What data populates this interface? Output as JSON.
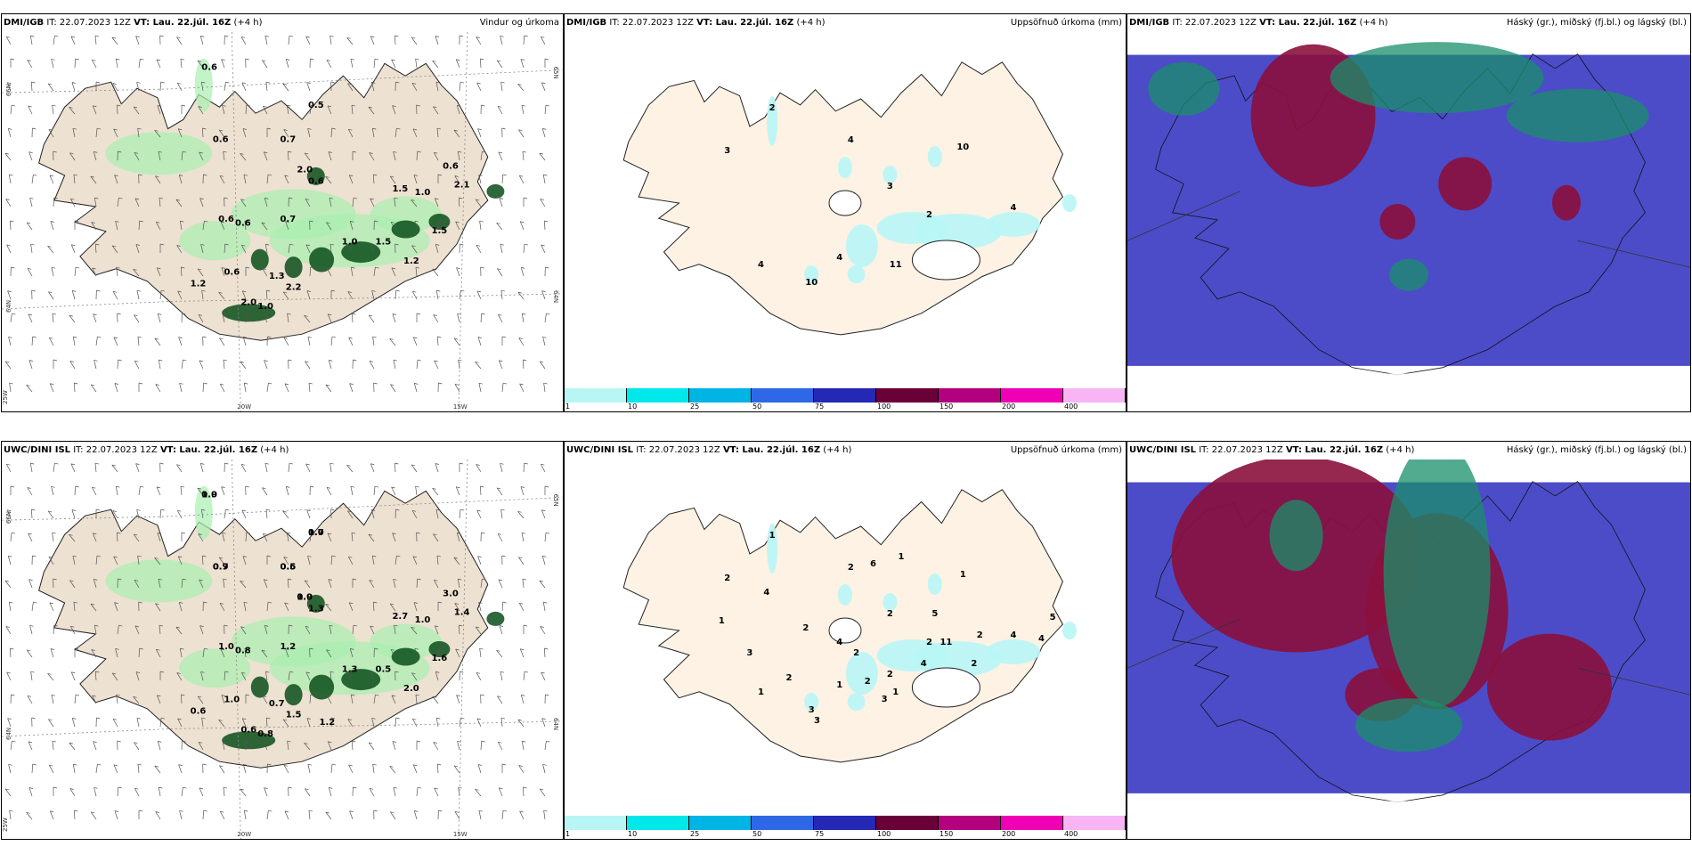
{
  "panels": [
    {
      "id": "p1",
      "model": "DMI/IGB",
      "it_label": "IT:",
      "it": "22.07.2023 12Z",
      "vt_label": "VT: Lau. 22.júl. 16Z",
      "lead": "(+4 h)",
      "title": "Vindur og úrkoma",
      "type": "wind",
      "grid": {
        "lat_top": "66N",
        "lat_top_right": "65N",
        "lat_mid": "64N",
        "lat_mid_right": "64N",
        "lat_bot": "25W",
        "lon_left": "20W",
        "lon_right": "15W"
      },
      "labels": [
        "0.6",
        "0.5",
        "0.7",
        "0.6",
        "2.0",
        "0.6",
        "0.6",
        "0.7",
        "1.5",
        "1.0",
        "0.6",
        "2.1",
        "1.0",
        "1.2",
        "0.6",
        "2.0",
        "2.2",
        "1.5",
        "1.5",
        "0.6",
        "1.0",
        "1.2",
        "1.3"
      ]
    },
    {
      "id": "p2",
      "model": "DMI/IGB",
      "it_label": "IT:",
      "it": "22.07.2023 12Z",
      "vt_label": "VT: Lau. 22.júl. 16Z",
      "lead": "(+4 h)",
      "title": "Uppsöfnuð úrkoma (mm)",
      "type": "precip",
      "labels": [
        "2",
        "3",
        "4",
        "3",
        "10",
        "11",
        "4",
        "4",
        "10",
        "2",
        "4"
      ]
    },
    {
      "id": "p3",
      "model": "DMI/IGB",
      "it_label": "IT:",
      "it": "22.07.2023 12Z",
      "vt_label": "VT: Lau. 22.júl. 16Z",
      "lead": "(+4 h)",
      "title": "Háský (gr.), miðský (fj.bl.) og lágský (bl.)",
      "type": "cloud"
    },
    {
      "id": "p4",
      "model": "UWC/DINI ISL",
      "it_label": "IT:",
      "it": "22.07.2023 12Z",
      "vt_label": "VT: Lau. 22.júl. 16Z",
      "lead": "(+4 h)",
      "title": "",
      "type": "wind",
      "grid": {
        "lat_top": "66N",
        "lat_top_right": "65N",
        "lat_mid": "64N",
        "lat_mid_right": "64N",
        "lat_bot": "25W",
        "lon_left": "20W",
        "lon_right": "15W"
      },
      "labels": [
        "1.0",
        "0.7",
        "0.5",
        "0.7",
        "0.9",
        "1.0",
        "0.8",
        "1.2",
        "2.7",
        "1.0",
        "3.0",
        "1.4",
        "1.3",
        "2.0",
        "1.0",
        "0.6",
        "1.5",
        "0.5",
        "1.6",
        "1.3",
        "0.8",
        "0.6",
        "0.7",
        "1.2",
        "0.9",
        "1.0",
        "0.6",
        "0.9",
        "1.0"
      ]
    },
    {
      "id": "p5",
      "model": "UWC/DINI ISL",
      "it_label": "IT:",
      "it": "22.07.2023 12Z",
      "vt_label": "VT: Lau. 22.júl. 16Z",
      "lead": "(+4 h)",
      "title": "Uppsöfnuð úrkoma (mm)",
      "type": "precip",
      "labels": [
        "1",
        "2",
        "2",
        "2",
        "1",
        "1",
        "1",
        "1",
        "3",
        "2",
        "4",
        "4",
        "1",
        "6",
        "5",
        "4",
        "2",
        "11",
        "2",
        "2",
        "4",
        "2",
        "3",
        "2",
        "2",
        "3",
        "5",
        "4",
        "1",
        "2",
        "3"
      ]
    },
    {
      "id": "p6",
      "model": "UWC/DINI ISL",
      "it_label": "IT:",
      "it": "22.07.2023 12Z",
      "vt_label": "VT: Lau. 22.júl. 16Z",
      "lead": "(+4 h)",
      "title": "Háský (gr.), miðský (fj.bl.) og lágský (bl.)",
      "type": "cloud"
    }
  ],
  "colorbar": {
    "labels": [
      "1",
      "10",
      "25",
      "50",
      "75",
      "100",
      "150",
      "200",
      "400"
    ],
    "colors": [
      "#b8f6f6",
      "#00e8ea",
      "#00b4e4",
      "#2e68e6",
      "#2428b4",
      "#6a0038",
      "#b2007e",
      "#f000b4",
      "#f8b4f4"
    ]
  },
  "colors": {
    "land": "#ede1d1",
    "land_precip": "#fdf2e4",
    "ocean": "#ffffff",
    "precip_light": "#a8f0b0",
    "precip_dark": "#0a4d1a",
    "cloud_low": "#3d3dc4",
    "cloud_mid": "#8b0f3c",
    "cloud_high": "#1a8f6a"
  }
}
